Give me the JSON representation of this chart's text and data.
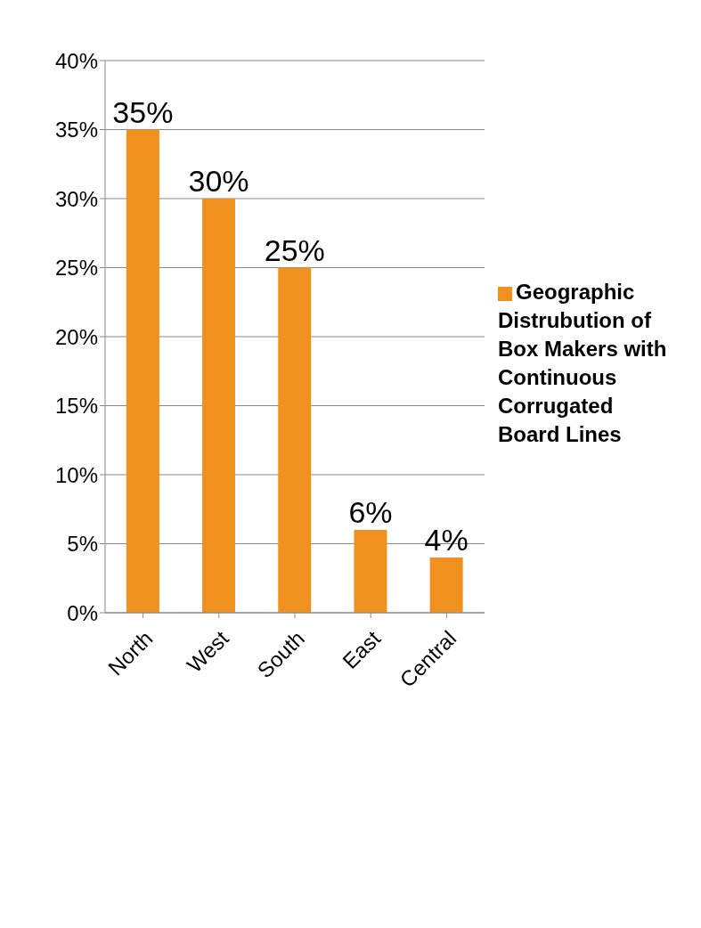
{
  "chart_data": {
    "type": "bar",
    "categories": [
      "North",
      "West",
      "South",
      "East",
      "Central"
    ],
    "series": [
      {
        "name": "Geographic Distrubution of Box Makers with Continuous Corrugated Board Lines",
        "color": "#f0901e",
        "values": [
          35,
          30,
          25,
          6,
          4
        ],
        "value_labels": [
          "35%",
          "30%",
          "25%",
          "6%",
          "4%"
        ]
      }
    ],
    "ylim": [
      0,
      40
    ],
    "yticks": [
      {
        "value": 0,
        "label": "0%"
      },
      {
        "value": 5,
        "label": "5%"
      },
      {
        "value": 10,
        "label": "10%"
      },
      {
        "value": 15,
        "label": "15%"
      },
      {
        "value": 20,
        "label": "20%"
      },
      {
        "value": 25,
        "label": "25%"
      },
      {
        "value": 30,
        "label": "30%"
      },
      {
        "value": 35,
        "label": "35%"
      },
      {
        "value": 40,
        "label": "40%"
      }
    ],
    "grid": "y",
    "legend": "right"
  }
}
